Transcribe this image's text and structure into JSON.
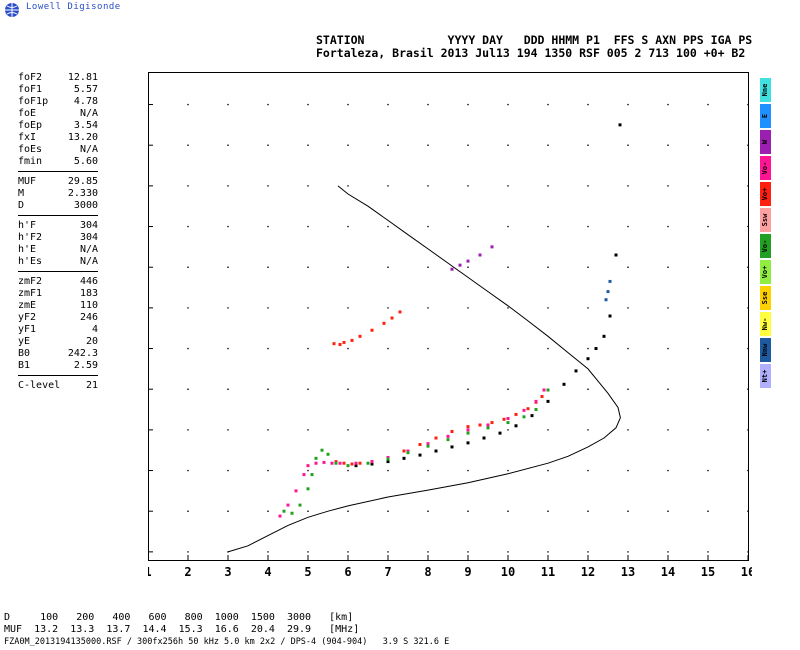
{
  "logo": {
    "text": "Lowell Digisonde"
  },
  "header": {
    "line1": "STATION            YYYY DAY   DDD HHMM P1  FFS S AXN PPS IGA PS",
    "line2": "Fortaleza, Brasil 2013 Jul13 194 1350 RSF 005 2 713 100 +0+ B2"
  },
  "params": {
    "groups": [
      [
        {
          "k": "foF2",
          "v": "12.81"
        },
        {
          "k": "foF1",
          "v": "5.57"
        },
        {
          "k": "foF1p",
          "v": "4.78"
        },
        {
          "k": "foE",
          "v": "N/A"
        },
        {
          "k": "foEp",
          "v": "3.54"
        },
        {
          "k": "fxI",
          "v": "13.20"
        },
        {
          "k": "foEs",
          "v": "N/A"
        },
        {
          "k": "fmin",
          "v": "5.60"
        }
      ],
      [
        {
          "k": "MUF",
          "v": "29.85"
        },
        {
          "k": "M",
          "v": "2.330"
        },
        {
          "k": "D",
          "v": "3000"
        }
      ],
      [
        {
          "k": "h'F",
          "v": "304"
        },
        {
          "k": "h'F2",
          "v": "304"
        },
        {
          "k": "h'E",
          "v": "N/A"
        },
        {
          "k": "h'Es",
          "v": "N/A"
        }
      ],
      [
        {
          "k": "zmF2",
          "v": "446"
        },
        {
          "k": "zmF1",
          "v": "183"
        },
        {
          "k": "zmE",
          "v": "110"
        },
        {
          "k": "yF2",
          "v": "246"
        },
        {
          "k": "yF1",
          "v": "4"
        },
        {
          "k": "yE",
          "v": "20"
        },
        {
          "k": "B0",
          "v": "242.3"
        },
        {
          "k": "B1",
          "v": "2.59"
        }
      ],
      [
        {
          "k": "C-level",
          "v": "21"
        }
      ]
    ]
  },
  "legend": [
    {
      "label": "Nne",
      "color": "#40e0e0"
    },
    {
      "label": "E",
      "color": "#1e90ff"
    },
    {
      "label": "W",
      "color": "#9b1fb0"
    },
    {
      "label": "Vo-",
      "color": "#ff1493"
    },
    {
      "label": "Vo+",
      "color": "#ff2010"
    },
    {
      "label": "Ssw",
      "color": "#ffa0a0"
    },
    {
      "label": "Vo-",
      "color": "#22a022"
    },
    {
      "label": "Vo+",
      "color": "#90ee40"
    },
    {
      "label": "Sse",
      "color": "#ffd000"
    },
    {
      "label": "Nw-",
      "color": "#ffff40"
    },
    {
      "label": "Nnw",
      "color": "#1e5aa0"
    },
    {
      "label": "Nt+",
      "color": "#b0b0ff"
    }
  ],
  "muf_table": {
    "row1": "D     100   200   400   600   800  1000  1500  3000   [km]",
    "row2": "MUF  13.2  13.3  13.7  14.4  15.3  16.6  20.4  29.9   [MHz]"
  },
  "footer": "FZA0M_2013194135000.RSF / 300fx256h 50 kHz 5.0 km 2x2 / DPS-4 (904-904)   3.9 S 321.6 E",
  "chart_data": {
    "type": "scatter",
    "xlabel": "",
    "ylabel": "",
    "xlim": [
      1,
      16
    ],
    "ylim": [
      80,
      1280
    ],
    "x_ticks": [
      1,
      2,
      3,
      4,
      5,
      6,
      7,
      8,
      9,
      10,
      11,
      12,
      13,
      14,
      15,
      16
    ],
    "y_ticks": [
      100,
      200,
      300,
      400,
      500,
      600,
      700,
      800,
      900,
      1000,
      1100,
      1200
    ],
    "grid": true,
    "series": [
      {
        "color": "#000000",
        "style": "line",
        "x": [
          3.0,
          3.5,
          4.0,
          4.5,
          5.0,
          5.5,
          6.0,
          7.0,
          8.0,
          9.0,
          10.0,
          11.0,
          11.5,
          12.0,
          12.4,
          12.7,
          12.81,
          12.75,
          12.5,
          12.0,
          11.5,
          11.0,
          10.5,
          10.0,
          9.5,
          9.0,
          8.5,
          8.0,
          7.5,
          7.0,
          6.5,
          6.0,
          5.75
        ],
        "y": [
          100,
          115,
          140,
          165,
          185,
          200,
          213,
          235,
          252,
          270,
          292,
          318,
          335,
          358,
          380,
          405,
          430,
          455,
          490,
          550,
          590,
          630,
          668,
          705,
          740,
          775,
          810,
          845,
          880,
          915,
          950,
          980,
          1000
        ]
      },
      {
        "color": "#000000",
        "style": "dots",
        "x": [
          6.2,
          6.6,
          7.0,
          7.4,
          7.8,
          8.2,
          8.6,
          9.0,
          9.4,
          9.8,
          10.2,
          10.6,
          11.0,
          11.4,
          11.7,
          12.0,
          12.2,
          12.4,
          12.55,
          12.7,
          12.8
        ],
        "y": [
          312,
          316,
          322,
          330,
          338,
          348,
          358,
          368,
          380,
          392,
          410,
          435,
          470,
          512,
          545,
          575,
          600,
          630,
          680,
          830,
          1150
        ]
      },
      {
        "color": "#ff2010",
        "style": "dots",
        "x": [
          5.7,
          5.9,
          6.1,
          6.3,
          6.6,
          7.0,
          7.4,
          7.8,
          8.2,
          8.6,
          9.0,
          9.3,
          9.6,
          9.9,
          10.2,
          10.5,
          10.7,
          10.85
        ],
        "y": [
          322,
          318,
          316,
          318,
          322,
          332,
          348,
          364,
          380,
          396,
          408,
          412,
          418,
          426,
          438,
          452,
          468,
          482
        ]
      },
      {
        "color": "#ff1493",
        "style": "dots",
        "x": [
          4.3,
          4.5,
          4.7,
          4.9,
          5.0,
          5.2,
          5.4,
          5.6,
          5.8,
          6.2,
          6.6,
          7.0,
          7.5,
          8.0,
          8.5,
          9.0,
          9.5,
          10.0,
          10.4,
          10.7,
          10.9
        ],
        "y": [
          188,
          215,
          250,
          290,
          312,
          318,
          320,
          318,
          318,
          318,
          322,
          332,
          348,
          366,
          384,
          400,
          412,
          428,
          448,
          470,
          498
        ]
      },
      {
        "color": "#22a022",
        "style": "dots",
        "x": [
          4.4,
          4.6,
          4.8,
          5.0,
          5.1,
          5.2,
          5.35,
          5.5,
          5.7,
          6.0,
          6.5,
          7.0,
          7.5,
          8.0,
          8.5,
          9.0,
          9.5,
          10.0,
          10.4,
          10.7,
          11.0
        ],
        "y": [
          200,
          195,
          215,
          255,
          290,
          330,
          350,
          340,
          318,
          312,
          318,
          328,
          344,
          360,
          376,
          392,
          405,
          418,
          432,
          450,
          498
        ]
      },
      {
        "color": "#1e5aa0",
        "style": "dots",
        "x": [
          12.45,
          12.5,
          12.55
        ],
        "y": [
          720,
          740,
          765
        ]
      },
      {
        "color": "#ff2010",
        "style": "dots",
        "x": [
          5.65,
          5.8,
          5.9,
          6.1,
          6.3,
          6.6,
          6.9,
          7.1,
          7.3
        ],
        "y": [
          612,
          610,
          615,
          620,
          630,
          645,
          662,
          675,
          690
        ]
      },
      {
        "color": "#9b1fb0",
        "style": "dots",
        "x": [
          8.6,
          8.8,
          9.0,
          9.3,
          9.6
        ],
        "y": [
          795,
          805,
          815,
          830,
          850
        ]
      }
    ]
  }
}
